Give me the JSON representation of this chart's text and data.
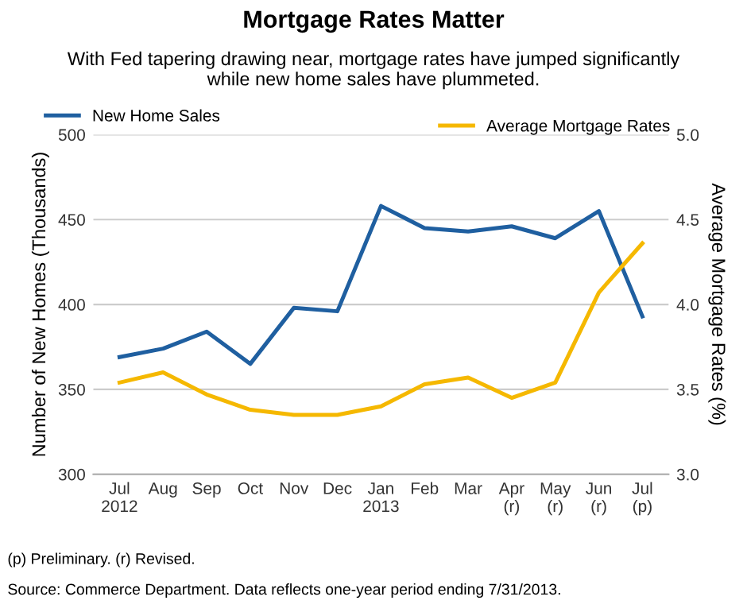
{
  "chart_data": {
    "type": "line",
    "title": "Mortgage Rates Matter",
    "subtitle": "With Fed tapering drawing near, mortgage rates have jumped significantly\nwhile new home sales have plummeted.",
    "ylabel": "Number of New Homes (Thousands)",
    "y2label": "Average Mortgage Rates (%)",
    "categories": [
      "Jul\n2012",
      "Aug",
      "Sep",
      "Oct",
      "Nov",
      "Dec",
      "Jan\n2013",
      "Feb",
      "Mar",
      "Apr\n(r)",
      "May\n(r)",
      "Jun\n(r)",
      "Jul\n(p)"
    ],
    "series": [
      {
        "name": "New Home Sales",
        "color": "#1f5fa0",
        "values": [
          369,
          374,
          384,
          365,
          398,
          396,
          458,
          445,
          443,
          446,
          439,
          455,
          393
        ]
      },
      {
        "name": "Average Mortgage Rates",
        "color": "#f5b800",
        "axis": "y2",
        "values": [
          3.54,
          3.6,
          3.47,
          3.38,
          3.35,
          3.35,
          3.4,
          3.53,
          3.57,
          3.45,
          3.54,
          4.07,
          4.36
        ]
      }
    ],
    "ylim": [
      300,
      500
    ],
    "yticks": [
      300,
      350,
      400,
      450,
      500
    ],
    "y2lim": [
      3.0,
      5.0
    ],
    "y2ticks": [
      {
        "value": 3.0,
        "label": "3.0"
      },
      {
        "value": 3.5,
        "label": "3.5"
      },
      {
        "value": 4.0,
        "label": "4.0"
      },
      {
        "value": 4.5,
        "label": "4.5"
      },
      {
        "value": 5.0,
        "label": "5.0"
      }
    ],
    "grid": "y",
    "legend": "top",
    "marker": "none",
    "line_style": "solid",
    "annotations": [
      "(p) Preliminary. (r) Revised.",
      "Source: Commerce Department. Data reflects one-year period ending 7/31/2013."
    ]
  }
}
